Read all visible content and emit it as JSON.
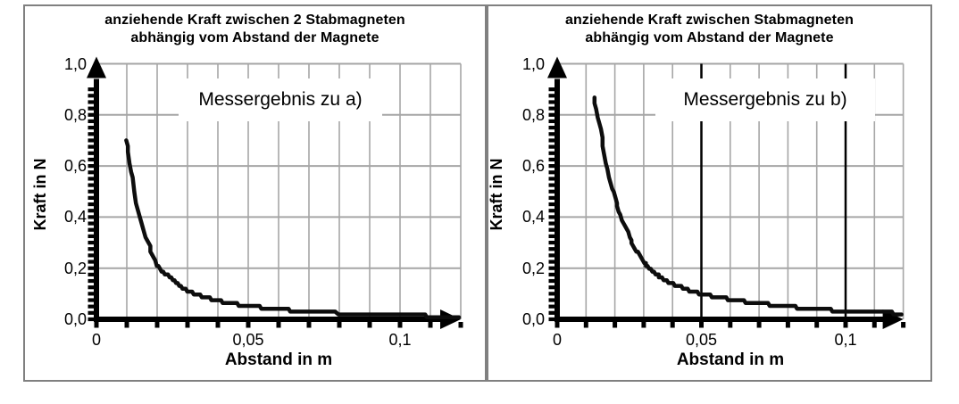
{
  "colors": {
    "background": "#ffffff",
    "panel_border": "#808080",
    "grid": "#a6a6a6",
    "axis": "#000000",
    "curve": "#0d0d0d",
    "emphasis_line": "#000000",
    "annotation_background": "#ffffff"
  },
  "chart_data": [
    {
      "type": "line",
      "title_line1": "anziehende Kraft zwischen 2 Stabmagneten",
      "title_line2": "abhängig vom Abstand der Magnete",
      "annotation": "Messergebnis zu a)",
      "xlabel": "Abstand in m",
      "ylabel": "Kraft in N",
      "xlim": [
        0,
        0.12
      ],
      "ylim": [
        0,
        1.0
      ],
      "grid": true,
      "x_grid_step": 0.01,
      "y_grid_step": 0.2,
      "x_minor_tick_step": 0.01,
      "y_minor_tick_step": 0.025,
      "emphasis_x": [],
      "legend": "none",
      "xticks": [
        {
          "value": 0,
          "label": "0"
        },
        {
          "value": 0.05,
          "label": "0,05"
        },
        {
          "value": 0.1,
          "label": "0,1"
        }
      ],
      "yticks": [
        {
          "value": 0.0,
          "label": "0,0"
        },
        {
          "value": 0.2,
          "label": "0,2"
        },
        {
          "value": 0.4,
          "label": "0,4"
        },
        {
          "value": 0.6,
          "label": "0,6"
        },
        {
          "value": 0.8,
          "label": "0,8"
        },
        {
          "value": 1.0,
          "label": "1,0"
        }
      ],
      "series": [
        {
          "name": "Messergebnis zu a)",
          "points": [
            [
              0.01,
              0.705
            ],
            [
              0.0103,
              0.675
            ],
            [
              0.0106,
              0.65
            ],
            [
              0.011,
              0.615
            ],
            [
              0.0115,
              0.58
            ],
            [
              0.012,
              0.55
            ],
            [
              0.0125,
              0.5
            ],
            [
              0.013,
              0.46
            ],
            [
              0.0135,
              0.43
            ],
            [
              0.014,
              0.405
            ],
            [
              0.015,
              0.36
            ],
            [
              0.016,
              0.325
            ],
            [
              0.017,
              0.3
            ],
            [
              0.018,
              0.27
            ],
            [
              0.019,
              0.245
            ],
            [
              0.02,
              0.21
            ],
            [
              0.022,
              0.185
            ],
            [
              0.024,
              0.165
            ],
            [
              0.026,
              0.145
            ],
            [
              0.028,
              0.128
            ],
            [
              0.03,
              0.113
            ],
            [
              0.033,
              0.097
            ],
            [
              0.036,
              0.085
            ],
            [
              0.04,
              0.072
            ],
            [
              0.044,
              0.062
            ],
            [
              0.048,
              0.055
            ],
            [
              0.052,
              0.049
            ],
            [
              0.056,
              0.044
            ],
            [
              0.06,
              0.039
            ],
            [
              0.065,
              0.034
            ],
            [
              0.07,
              0.03
            ],
            [
              0.075,
              0.027
            ],
            [
              0.08,
              0.024
            ],
            [
              0.085,
              0.021
            ],
            [
              0.09,
              0.019
            ],
            [
              0.095,
              0.017
            ],
            [
              0.1,
              0.015
            ],
            [
              0.105,
              0.014
            ],
            [
              0.11,
              0.013
            ],
            [
              0.115,
              0.012
            ],
            [
              0.1195,
              0.011
            ]
          ]
        }
      ]
    },
    {
      "type": "line",
      "title_line1": "anziehende Kraft zwischen Stabmagneten",
      "title_line2": "abhängig vom Abstand der Magnete",
      "annotation": "Messergebnis zu b)",
      "xlabel": "Abstand in m",
      "ylabel": "Kraft in N",
      "xlim": [
        0,
        0.12
      ],
      "ylim": [
        0,
        1.0
      ],
      "grid": true,
      "x_grid_step": 0.01,
      "y_grid_step": 0.2,
      "x_minor_tick_step": 0.01,
      "y_minor_tick_step": 0.025,
      "emphasis_x": [
        0.05,
        0.1
      ],
      "legend": "none",
      "xticks": [
        {
          "value": 0,
          "label": "0"
        },
        {
          "value": 0.05,
          "label": "0,05"
        },
        {
          "value": 0.1,
          "label": "0,1"
        }
      ],
      "yticks": [
        {
          "value": 0.0,
          "label": "0,0"
        },
        {
          "value": 0.2,
          "label": "0,2"
        },
        {
          "value": 0.4,
          "label": "0,4"
        },
        {
          "value": 0.6,
          "label": "0,6"
        },
        {
          "value": 0.8,
          "label": "0,8"
        },
        {
          "value": 1.0,
          "label": "1,0"
        }
      ],
      "series": [
        {
          "name": "Messergebnis zu b)",
          "points": [
            [
              0.0128,
              0.87
            ],
            [
              0.013,
              0.85
            ],
            [
              0.0135,
              0.82
            ],
            [
              0.014,
              0.79
            ],
            [
              0.0145,
              0.765
            ],
            [
              0.015,
              0.74
            ],
            [
              0.0155,
              0.71
            ],
            [
              0.016,
              0.675
            ],
            [
              0.0165,
              0.645
            ],
            [
              0.017,
              0.615
            ],
            [
              0.018,
              0.56
            ],
            [
              0.019,
              0.515
            ],
            [
              0.02,
              0.475
            ],
            [
              0.021,
              0.44
            ],
            [
              0.022,
              0.405
            ],
            [
              0.023,
              0.375
            ],
            [
              0.024,
              0.35
            ],
            [
              0.025,
              0.325
            ],
            [
              0.026,
              0.3
            ],
            [
              0.028,
              0.26
            ],
            [
              0.03,
              0.225
            ],
            [
              0.032,
              0.2
            ],
            [
              0.034,
              0.18
            ],
            [
              0.036,
              0.163
            ],
            [
              0.038,
              0.15
            ],
            [
              0.04,
              0.138
            ],
            [
              0.043,
              0.125
            ],
            [
              0.046,
              0.113
            ],
            [
              0.05,
              0.1
            ],
            [
              0.054,
              0.09
            ],
            [
              0.058,
              0.082
            ],
            [
              0.062,
              0.075
            ],
            [
              0.066,
              0.068
            ],
            [
              0.07,
              0.062
            ],
            [
              0.075,
              0.056
            ],
            [
              0.08,
              0.05
            ],
            [
              0.085,
              0.045
            ],
            [
              0.09,
              0.04
            ],
            [
              0.095,
              0.036
            ],
            [
              0.1,
              0.032
            ],
            [
              0.105,
              0.029
            ],
            [
              0.11,
              0.027
            ],
            [
              0.115,
              0.025
            ],
            [
              0.1195,
              0.023
            ]
          ]
        }
      ]
    }
  ]
}
